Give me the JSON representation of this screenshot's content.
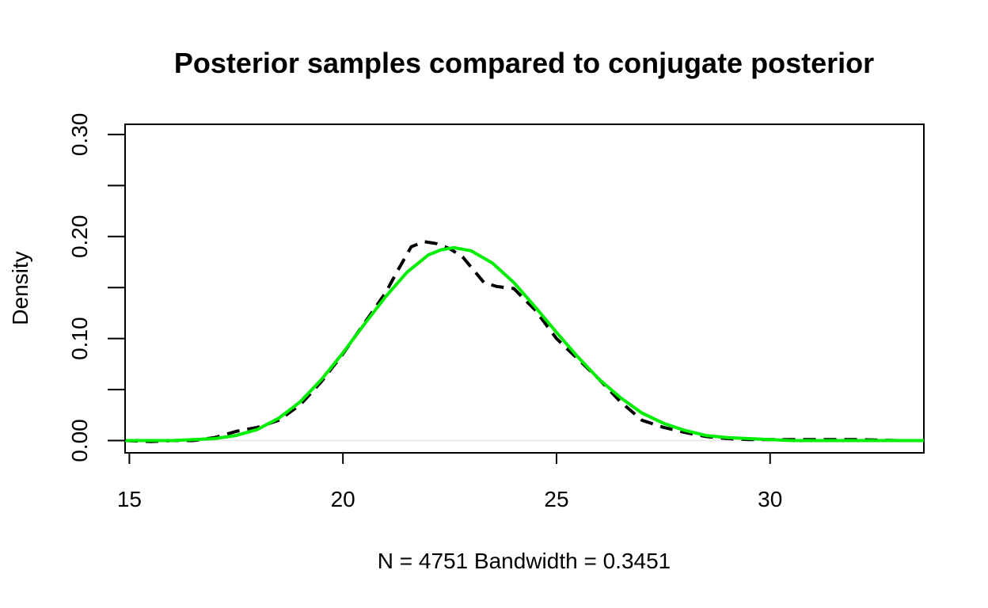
{
  "chart_data": {
    "type": "line",
    "title": "Posterior samples compared to conjugate posterior",
    "xlabel": "N = 4751   Bandwidth = 0.3451",
    "ylabel": "Density",
    "xlim": [
      14.9,
      33.6
    ],
    "ylim": [
      -0.012,
      0.31
    ],
    "x_ticks": [
      15,
      20,
      25,
      30
    ],
    "x_tick_labels": [
      "15",
      "20",
      "25",
      "30"
    ],
    "y_ticks": [
      0.0,
      0.05,
      0.1,
      0.15,
      0.2,
      0.25,
      0.3
    ],
    "y_tick_labels": [
      "0.00",
      "",
      "0.10",
      "",
      "0.20",
      "",
      "0.30"
    ],
    "grid": false,
    "legend": "none",
    "series": [
      {
        "style": "dashed",
        "color": "#000000",
        "x": [
          14.9,
          15.5,
          16.0,
          16.5,
          17.0,
          17.5,
          18.0,
          18.5,
          19.0,
          19.5,
          20.0,
          20.5,
          21.0,
          21.3,
          21.6,
          21.9,
          22.2,
          22.5,
          22.8,
          23.0,
          23.3,
          23.6,
          24.0,
          24.5,
          25.0,
          25.5,
          26.0,
          26.5,
          27.0,
          27.5,
          28.0,
          28.5,
          29.0,
          29.5,
          30.0,
          31.0,
          32.0,
          33.0,
          33.6
        ],
        "y": [
          0.0,
          -0.001,
          0.0,
          0.0,
          0.003,
          0.009,
          0.013,
          0.02,
          0.035,
          0.058,
          0.085,
          0.115,
          0.145,
          0.168,
          0.19,
          0.195,
          0.193,
          0.188,
          0.18,
          0.17,
          0.155,
          0.151,
          0.149,
          0.128,
          0.1,
          0.08,
          0.06,
          0.038,
          0.02,
          0.013,
          0.008,
          0.004,
          0.002,
          0.001,
          0.001,
          0.001,
          0.001,
          0.0,
          0.0
        ]
      },
      {
        "style": "solid",
        "color": "#00ee00",
        "x": [
          14.9,
          15.5,
          16.0,
          16.5,
          17.0,
          17.5,
          18.0,
          18.5,
          19.0,
          19.5,
          20.0,
          20.5,
          21.0,
          21.5,
          22.0,
          22.3,
          22.6,
          23.0,
          23.5,
          24.0,
          24.5,
          25.0,
          25.5,
          26.0,
          26.5,
          27.0,
          27.5,
          28.0,
          28.5,
          29.0,
          29.5,
          30.0,
          30.5,
          31.0,
          32.0,
          33.0,
          33.6
        ],
        "y": [
          0.0,
          0.0,
          0.0,
          0.001,
          0.002,
          0.005,
          0.011,
          0.022,
          0.038,
          0.06,
          0.086,
          0.114,
          0.141,
          0.165,
          0.182,
          0.187,
          0.189,
          0.186,
          0.174,
          0.155,
          0.131,
          0.106,
          0.082,
          0.06,
          0.042,
          0.027,
          0.017,
          0.01,
          0.005,
          0.003,
          0.002,
          0.001,
          0.0,
          0.0,
          0.0,
          0.0,
          0.0
        ]
      }
    ]
  }
}
